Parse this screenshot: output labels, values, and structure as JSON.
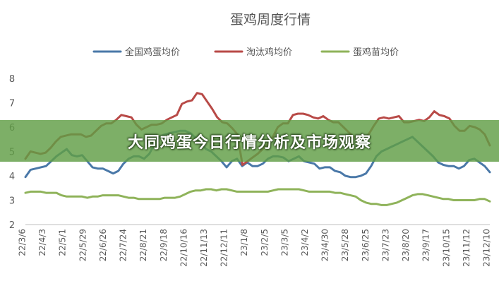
{
  "banner": {
    "text": "大同鸡蛋今日行情分析及市场观察"
  },
  "chart_data": {
    "type": "line",
    "title": "蛋鸡周度行情",
    "xlabel": "",
    "ylabel": "",
    "ylim": [
      2,
      8
    ],
    "yticks": [
      2,
      3,
      4,
      5,
      6,
      7,
      8
    ],
    "grid": false,
    "legend_position": "top",
    "x_tick_labels": [
      "22/3/6",
      "22/4/3",
      "22/5/1",
      "22/5/29",
      "22/6/26",
      "22/7/24",
      "22/8/21",
      "22/9/18",
      "22/10/16",
      "22/11/13",
      "22/12/11",
      "23/1/8",
      "23/2/5",
      "23/3/5",
      "23/4/2",
      "23/4/30",
      "23/5/28",
      "23/6/25",
      "23/7/23",
      "23/8/20",
      "23/9/17",
      "23/10/15",
      "23/11/12",
      "23/12/10"
    ],
    "series": [
      {
        "name": "全国鸡蛋均价",
        "color": "#4a78a8",
        "values": [
          3.95,
          4.25,
          4.3,
          4.35,
          4.4,
          4.6,
          4.8,
          4.95,
          5.1,
          4.85,
          4.8,
          4.85,
          4.6,
          4.35,
          4.3,
          4.3,
          4.2,
          4.1,
          4.2,
          4.5,
          4.7,
          4.8,
          4.8,
          4.7,
          4.9,
          5.3,
          5.6,
          5.7,
          5.75,
          5.8,
          5.85,
          5.85,
          5.75,
          5.55,
          5.35,
          5.1,
          5.0,
          4.8,
          4.6,
          4.35,
          4.6,
          4.7,
          4.4,
          4.55,
          4.4,
          4.4,
          4.5,
          4.7,
          4.8,
          4.8,
          4.75,
          4.6,
          4.7,
          4.8,
          4.6,
          4.55,
          4.5,
          4.3,
          4.35,
          4.35,
          4.2,
          4.15,
          4.0,
          3.95,
          3.95,
          4.0,
          4.1,
          4.4,
          4.8,
          5.0,
          5.1,
          5.2,
          5.3,
          5.4,
          5.5,
          5.6,
          5.4,
          5.2,
          5.0,
          4.8,
          4.55,
          4.45,
          4.4,
          4.4,
          4.3,
          4.4,
          4.65,
          4.7,
          4.55,
          4.4,
          4.15
        ]
      },
      {
        "name": "淘汰鸡均价",
        "color": "#b84a47",
        "values": [
          4.7,
          5.0,
          4.95,
          4.9,
          4.95,
          5.15,
          5.4,
          5.6,
          5.65,
          5.7,
          5.7,
          5.7,
          5.6,
          5.65,
          5.85,
          6.05,
          6.15,
          6.15,
          6.3,
          6.5,
          6.45,
          6.4,
          6.1,
          5.9,
          6.0,
          6.1,
          6.1,
          6.15,
          6.3,
          6.4,
          6.5,
          6.95,
          7.05,
          7.1,
          7.4,
          7.35,
          7.05,
          6.75,
          6.4,
          6.2,
          6.15,
          5.95,
          5.7,
          4.45,
          4.6,
          4.75,
          4.9,
          5.1,
          5.3,
          5.6,
          6.0,
          6.15,
          6.15,
          6.5,
          6.55,
          6.55,
          6.5,
          6.4,
          6.35,
          6.45,
          6.3,
          6.2,
          6.2,
          6.0,
          5.8,
          5.6,
          5.55,
          5.5,
          5.7,
          6.05,
          6.35,
          6.4,
          6.35,
          6.4,
          6.45,
          6.2,
          6.2,
          6.25,
          6.3,
          6.25,
          6.4,
          6.65,
          6.5,
          6.45,
          6.35,
          6.05,
          5.85,
          5.85,
          6.05,
          6.0,
          5.9,
          5.7,
          5.25
        ]
      },
      {
        "name": "蛋鸡苗均价",
        "color": "#8fb35a",
        "values": [
          3.3,
          3.35,
          3.35,
          3.35,
          3.3,
          3.3,
          3.3,
          3.2,
          3.15,
          3.15,
          3.15,
          3.15,
          3.1,
          3.15,
          3.15,
          3.2,
          3.2,
          3.2,
          3.2,
          3.15,
          3.1,
          3.1,
          3.05,
          3.05,
          3.05,
          3.05,
          3.05,
          3.1,
          3.1,
          3.1,
          3.15,
          3.25,
          3.35,
          3.4,
          3.4,
          3.45,
          3.45,
          3.4,
          3.45,
          3.45,
          3.4,
          3.35,
          3.35,
          3.35,
          3.35,
          3.35,
          3.35,
          3.35,
          3.4,
          3.45,
          3.45,
          3.45,
          3.45,
          3.45,
          3.4,
          3.35,
          3.35,
          3.35,
          3.35,
          3.35,
          3.3,
          3.3,
          3.25,
          3.2,
          3.15,
          3.0,
          2.9,
          2.85,
          2.85,
          2.8,
          2.8,
          2.85,
          2.9,
          3.0,
          3.1,
          3.2,
          3.25,
          3.25,
          3.2,
          3.15,
          3.1,
          3.05,
          3.05,
          3.0,
          3.0,
          3.0,
          3.0,
          3.0,
          3.05,
          3.05,
          2.95
        ]
      }
    ]
  }
}
